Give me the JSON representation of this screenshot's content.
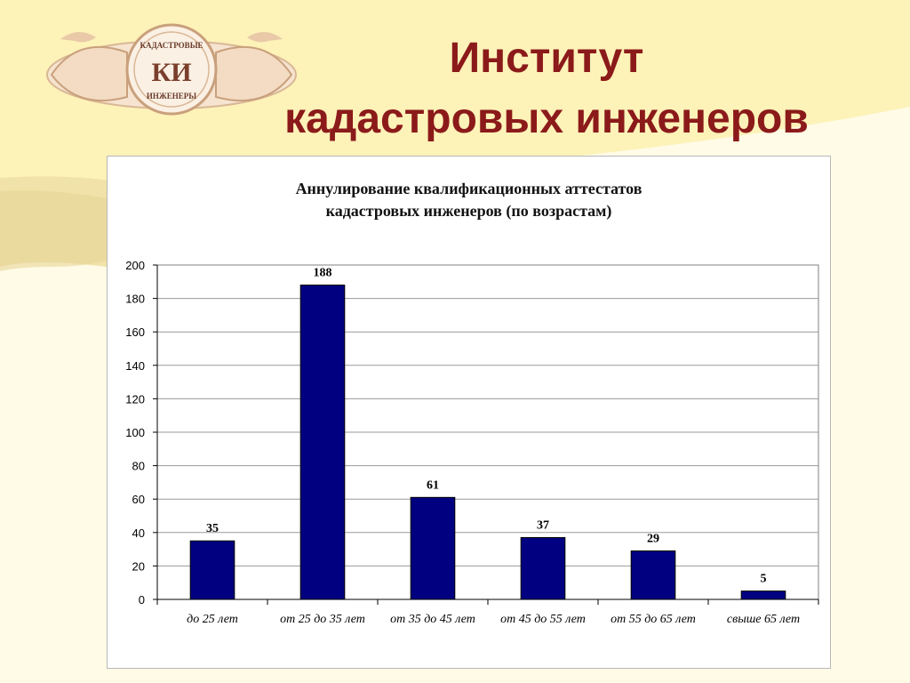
{
  "slide": {
    "title_line1": "Институт",
    "title_line2": "кадастровых инженеров",
    "title_color": "#8b1a1a",
    "logo": {
      "text_top": "КАДАСТРОВЫЕ",
      "monogram": "КИ",
      "text_bottom": "ИНЖЕНЕРЫ"
    }
  },
  "chart_data": {
    "type": "bar",
    "title": "Аннулирование квалификационных аттестатов кадастровых инженеров (по возрастам)",
    "title_lines": [
      "Аннулирование квалификационных аттестатов",
      "кадастровых инженеров (по возрастам)"
    ],
    "categories": [
      "до 25 лет",
      "от 25 до 35 лет",
      "от 35 до 45 лет",
      "от 45 до 55 лет",
      "от 55 до 65 лет",
      "свыше 65 лет"
    ],
    "values": [
      35,
      188,
      61,
      37,
      29,
      5
    ],
    "ylim": [
      0,
      200
    ],
    "yticks": [
      0,
      20,
      40,
      60,
      80,
      100,
      120,
      140,
      160,
      180,
      200
    ],
    "xlabel": "",
    "ylabel": "",
    "grid": true,
    "legend": "none",
    "bar_color": "#000080",
    "data_labels": true
  }
}
